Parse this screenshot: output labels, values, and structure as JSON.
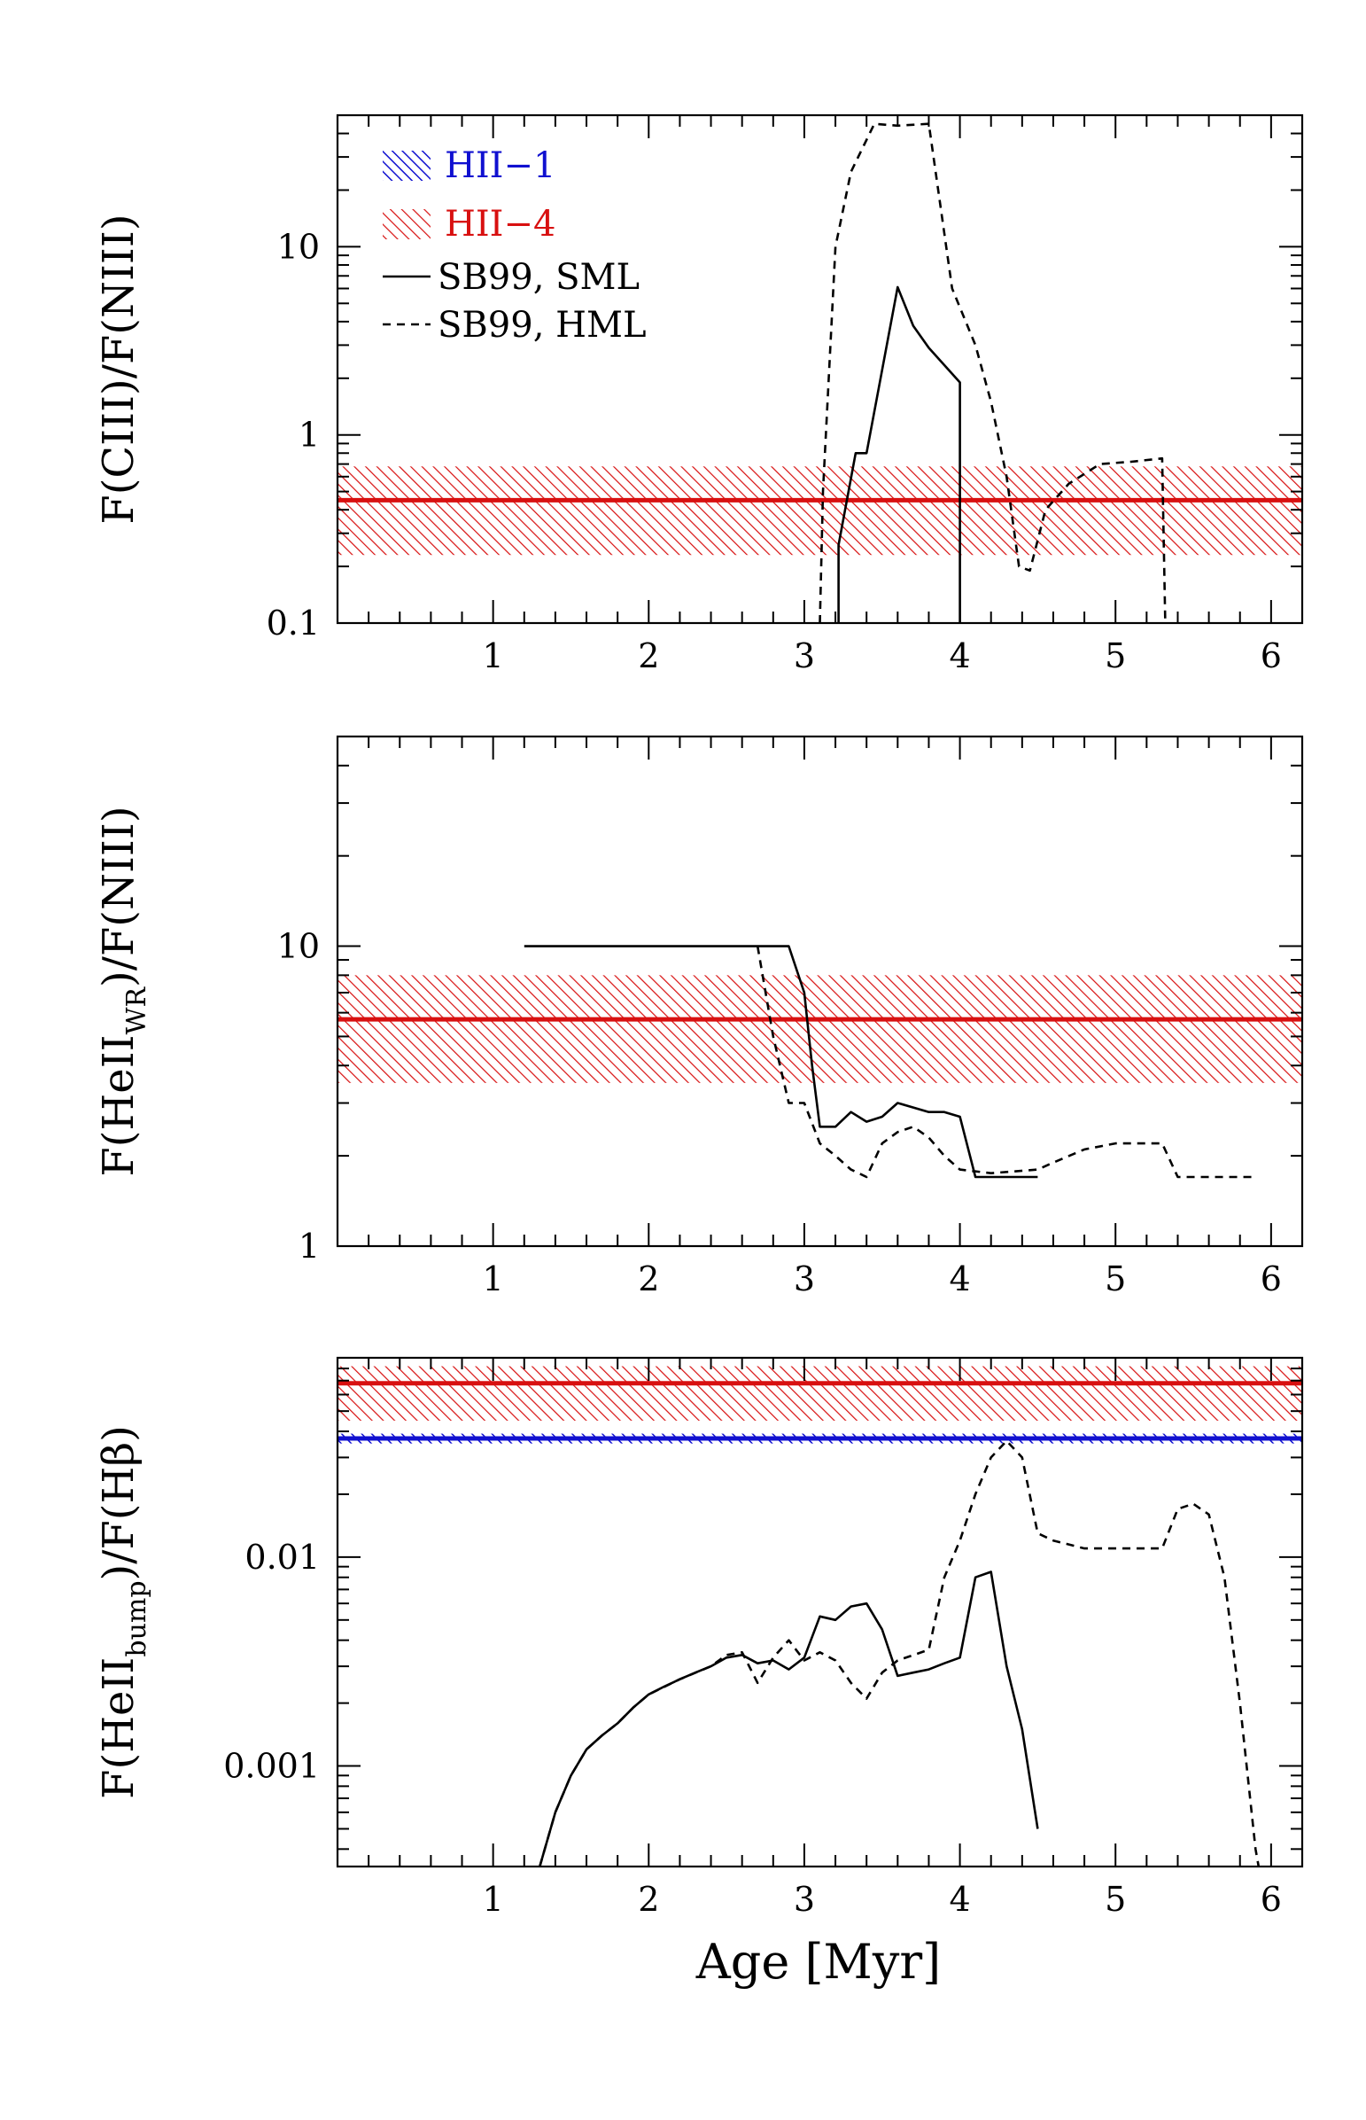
{
  "colors": {
    "hii1": "#1010d0",
    "hii4": "#d81010",
    "model": "#000000"
  },
  "xlabel": "Age [Myr]",
  "xticks": [
    1,
    2,
    3,
    4,
    5,
    6
  ],
  "legend": {
    "items": [
      {
        "label": "HII−1",
        "kind": "band",
        "color": "#1010d0"
      },
      {
        "label": "HII−4",
        "kind": "band",
        "color": "#d81010"
      },
      {
        "label": "SB99, SML",
        "kind": "solid"
      },
      {
        "label": "SB99, HML",
        "kind": "dashed"
      }
    ]
  },
  "chart_data": [
    {
      "type": "line",
      "ylabel": "F(CIII)/F(NIII)",
      "ylog": true,
      "xlim": [
        0,
        6.2
      ],
      "ylim": [
        0.1,
        50
      ],
      "ytick_labels": [
        {
          "v": 0.1,
          "t": "0.1"
        },
        {
          "v": 1,
          "t": "1"
        },
        {
          "v": 10,
          "t": "10"
        }
      ],
      "bands": [
        {
          "name": "HII-4",
          "value": 0.45,
          "low": 0.23,
          "high": 0.68,
          "color": "#d81010"
        }
      ],
      "series": [
        {
          "name": "SB99, SML",
          "style": "solid",
          "x": [
            3.22,
            3.22,
            3.33,
            3.4,
            3.6,
            3.7,
            3.8,
            4.0,
            4.0
          ],
          "y": [
            0.1,
            0.26,
            0.8,
            0.8,
            6.1,
            3.8,
            2.9,
            1.9,
            0.1
          ]
        },
        {
          "name": "SB99, HML",
          "style": "dashed",
          "x": [
            3.1,
            3.12,
            3.2,
            3.3,
            3.45,
            3.6,
            3.8,
            3.95,
            4.1,
            4.2,
            4.3,
            4.38,
            4.45,
            4.55,
            4.7,
            4.9,
            5.1,
            5.3,
            5.32
          ],
          "y": [
            0.1,
            0.5,
            10,
            25,
            45,
            44,
            45,
            6,
            3,
            1.5,
            0.6,
            0.2,
            0.19,
            0.4,
            0.55,
            0.7,
            0.72,
            0.75,
            0.1
          ]
        }
      ]
    },
    {
      "type": "line",
      "ylabel_parts": [
        "F(HeII",
        "WR",
        ")/F(NIII)"
      ],
      "ylog": true,
      "xlim": [
        0,
        6.2
      ],
      "ylim": [
        1,
        50
      ],
      "ytick_labels": [
        {
          "v": 1,
          "t": "1"
        },
        {
          "v": 10,
          "t": "10"
        }
      ],
      "bands": [
        {
          "name": "HII-4",
          "value": 5.7,
          "low": 3.5,
          "high": 8.0,
          "color": "#d81010"
        }
      ],
      "series": [
        {
          "name": "SB99, SML",
          "style": "solid",
          "x": [
            1.2,
            2.0,
            2.9,
            3.0,
            3.05,
            3.1,
            3.2,
            3.3,
            3.4,
            3.5,
            3.6,
            3.8,
            3.9,
            4.0,
            4.1,
            4.5
          ],
          "y": [
            10,
            10,
            10,
            7,
            4,
            2.5,
            2.5,
            2.8,
            2.6,
            2.7,
            3.0,
            2.8,
            2.8,
            2.7,
            1.7,
            1.7
          ]
        },
        {
          "name": "SB99, HML",
          "style": "dashed",
          "x": [
            2.7,
            2.8,
            2.9,
            3.0,
            3.1,
            3.2,
            3.3,
            3.4,
            3.5,
            3.6,
            3.7,
            3.8,
            3.9,
            4.0,
            4.2,
            4.5,
            4.6,
            4.8,
            5.0,
            5.3,
            5.4,
            5.5,
            5.9
          ],
          "y": [
            10,
            5,
            3,
            3,
            2.2,
            2.0,
            1.8,
            1.7,
            2.2,
            2.4,
            2.5,
            2.3,
            2.0,
            1.8,
            1.75,
            1.8,
            1.9,
            2.1,
            2.2,
            2.2,
            1.7,
            1.7,
            1.7
          ]
        }
      ]
    },
    {
      "type": "line",
      "ylabel_parts": [
        "F(HeII",
        "bump",
        ")/F(Hβ)"
      ],
      "ylog": true,
      "xlim": [
        0,
        6.2
      ],
      "ylim": [
        0.00033,
        0.09
      ],
      "ytick_labels": [
        {
          "v": 0.001,
          "t": "0.001"
        },
        {
          "v": 0.01,
          "t": "0.01"
        }
      ],
      "bands": [
        {
          "name": "HII-4",
          "value": 0.068,
          "low": 0.045,
          "high": 0.082,
          "color": "#d81010"
        },
        {
          "name": "HII-1",
          "value": 0.037,
          "low": 0.035,
          "high": 0.039,
          "color": "#1010d0"
        }
      ],
      "series": [
        {
          "name": "SB99, SML",
          "style": "solid",
          "x": [
            1.3,
            1.4,
            1.5,
            1.6,
            1.7,
            1.8,
            1.9,
            2.0,
            2.1,
            2.2,
            2.3,
            2.4,
            2.5,
            2.6,
            2.7,
            2.8,
            2.9,
            3.0,
            3.1,
            3.2,
            3.3,
            3.4,
            3.5,
            3.6,
            3.7,
            3.8,
            3.9,
            4.0,
            4.1,
            4.2,
            4.3,
            4.4,
            4.5
          ],
          "y": [
            0.00033,
            0.0006,
            0.0009,
            0.0012,
            0.0014,
            0.0016,
            0.0019,
            0.0022,
            0.0024,
            0.0026,
            0.0028,
            0.003,
            0.0033,
            0.0034,
            0.0031,
            0.0032,
            0.0029,
            0.0033,
            0.0052,
            0.005,
            0.0058,
            0.006,
            0.0045,
            0.0027,
            0.0028,
            0.0029,
            0.0031,
            0.0033,
            0.008,
            0.0085,
            0.003,
            0.0015,
            0.0005
          ]
        },
        {
          "name": "SB99, HML",
          "style": "dashed",
          "x": [
            1.3,
            1.4,
            1.5,
            1.6,
            1.7,
            1.8,
            1.9,
            2.0,
            2.2,
            2.4,
            2.5,
            2.6,
            2.7,
            2.8,
            2.9,
            3.0,
            3.1,
            3.2,
            3.3,
            3.4,
            3.5,
            3.6,
            3.8,
            3.9,
            4.0,
            4.1,
            4.2,
            4.3,
            4.4,
            4.5,
            4.6,
            4.8,
            5.0,
            5.3,
            5.4,
            5.5,
            5.6,
            5.7,
            5.8,
            5.9,
            5.92
          ],
          "y": [
            0.00033,
            0.0006,
            0.0009,
            0.0012,
            0.0014,
            0.0016,
            0.0019,
            0.0022,
            0.0026,
            0.003,
            0.0034,
            0.0035,
            0.0025,
            0.0033,
            0.004,
            0.0032,
            0.0035,
            0.0032,
            0.0025,
            0.0021,
            0.0028,
            0.0032,
            0.0036,
            0.008,
            0.012,
            0.02,
            0.03,
            0.036,
            0.03,
            0.013,
            0.012,
            0.011,
            0.011,
            0.011,
            0.017,
            0.018,
            0.016,
            0.008,
            0.002,
            0.0004,
            0.00033
          ]
        }
      ]
    }
  ]
}
